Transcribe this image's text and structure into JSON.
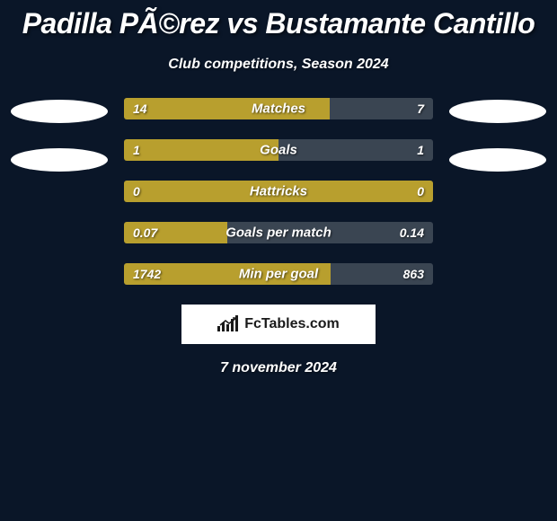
{
  "title": "Padilla PÃ©rez vs Bustamante Cantillo",
  "subtitle": "Club competitions, Season 2024",
  "background_color": "#0a1628",
  "left_bar_color": "#b89f2e",
  "right_bar_color": "#3a4552",
  "avatar_color": "#ffffff",
  "text_color": "#ffffff",
  "stats": [
    {
      "label": "Matches",
      "left_val": "14",
      "right_val": "7",
      "left_pct": 66.6
    },
    {
      "label": "Goals",
      "left_val": "1",
      "right_val": "1",
      "left_pct": 50
    },
    {
      "label": "Hattricks",
      "left_val": "0",
      "right_val": "0",
      "left_pct": 100
    },
    {
      "label": "Goals per match",
      "left_val": "0.07",
      "right_val": "0.14",
      "left_pct": 33.3
    },
    {
      "label": "Min per goal",
      "left_val": "1742",
      "right_val": "863",
      "left_pct": 66.8
    }
  ],
  "logo_text": "FcTables.com",
  "date": "7 november 2024",
  "title_fontsize": 32,
  "subtitle_fontsize": 16,
  "label_fontsize": 15,
  "value_fontsize": 14,
  "logo_bars_heights": [
    6,
    10,
    8,
    14,
    18
  ]
}
